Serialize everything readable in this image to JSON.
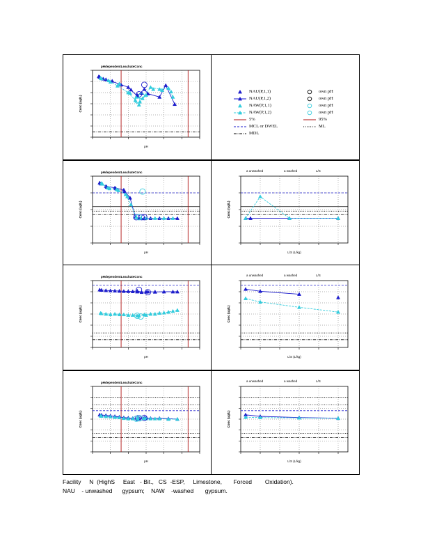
{
  "colors": {
    "nau": "#1c1ccc",
    "naw": "#33ccdd",
    "percentile": "#b01010",
    "mcl": "#1c1ccc",
    "ml": "#000000",
    "mdl": "#000000",
    "grid": "#666666"
  },
  "legend": {
    "items": [
      {
        "label": "NAU(P,1,1)",
        "kind": "nau-tri"
      },
      {
        "label": "own pH",
        "kind": "circle-black"
      },
      {
        "label": "NAU(P,1,2)",
        "kind": "nau-line"
      },
      {
        "label": "own pH",
        "kind": "circle-black"
      },
      {
        "label": "NAW(P,1,1)",
        "kind": "naw-tri"
      },
      {
        "label": "own pH",
        "kind": "circle-cyan"
      },
      {
        "label": "NAW(P,1,2)",
        "kind": "naw-line"
      },
      {
        "label": "own pH",
        "kind": "circle-cyan"
      },
      {
        "label": "5%",
        "kind": "red-line"
      },
      {
        "label": "95%",
        "kind": "red-line"
      },
      {
        "label": "MCL or DWEL",
        "kind": "blue-dash"
      },
      {
        "label": "ML",
        "kind": "black-dot"
      },
      {
        "label": "MDL",
        "kind": "black-dashdot"
      }
    ]
  },
  "caption": {
    "line1": "Facility     N  (HighS     East   - Bit.,   CS  -ESP,     Limestone,       Forced        Oxidation).",
    "line2": "NAU    - unwashed      gypsum;    NAW    -washed       gypsum."
  },
  "chart_data": [
    {
      "type": "scatter",
      "title": "pHdependentLeachateConc",
      "xlabel": "pH",
      "ylabel": "Conc (ug/L)",
      "xlim": [
        2,
        14
      ],
      "ylim_log": [
        0.01,
        10000
      ],
      "percentile_x": [
        5.2,
        12.7
      ],
      "ref_lines": [
        {
          "kind": "mdl",
          "y": 0.03
        },
        {
          "kind": "mdl",
          "y": 0.03
        }
      ],
      "series": [
        {
          "style": "nau-line",
          "x": [
            2.8,
            3.5,
            5.0,
            6.0,
            7.0,
            7.8,
            8.2,
            9.5,
            10.2,
            11.2
          ],
          "y": [
            2500,
            1500,
            600,
            300,
            50,
            200,
            80,
            40,
            450,
            9
          ]
        },
        {
          "style": "nau-tri",
          "x": [
            2.7,
            3.2,
            4.2,
            5.2,
            6.3,
            7.0,
            7.5
          ],
          "y": [
            2800,
            1700,
            1100,
            500,
            180,
            60,
            90
          ]
        },
        {
          "style": "naw-line",
          "x": [
            2.9,
            3.8,
            4.8,
            6.0,
            6.8,
            7.2,
            7.6,
            8.5,
            9.5,
            10.5,
            11.0
          ],
          "y": [
            2000,
            1200,
            400,
            100,
            20,
            8,
            30,
            300,
            200,
            250,
            40
          ]
        },
        {
          "style": "naw-tri",
          "x": [
            3.0,
            4.0,
            5.0,
            6.2,
            6.9,
            7.3,
            8.0,
            8.8,
            9.8,
            10.8
          ],
          "y": [
            1800,
            900,
            600,
            90,
            40,
            15,
            60,
            200,
            160,
            120
          ]
        },
        {
          "style": "circle-black",
          "x": [
            7.2,
            7.8
          ],
          "y": [
            70,
            500
          ]
        },
        {
          "style": "circle-cyan",
          "x": [
            7.0,
            7.5
          ],
          "y": [
            20,
            50
          ]
        }
      ]
    },
    {
      "type": "scatter",
      "title": "pHdependentLeachateConc",
      "xlabel": "pH",
      "ylabel": "Conc (ug/L)",
      "xlim": [
        2,
        14
      ],
      "ylim_log": [
        0.01,
        100
      ],
      "percentile_x": [
        5.2,
        12.7
      ],
      "ref_lines": [
        {
          "kind": "mcl",
          "y": 10
        },
        {
          "kind": "ml-solid",
          "y": 1.5
        },
        {
          "kind": "ml",
          "y": 0.8
        },
        {
          "kind": "mdl",
          "y": 0.5
        }
      ],
      "series": [
        {
          "style": "nau-line",
          "x": [
            2.8,
            3.5,
            4.5,
            5.5,
            6.2,
            6.8,
            7.2,
            7.8,
            8.5,
            9.5,
            10.5,
            11.5
          ],
          "y": [
            40,
            25,
            20,
            15,
            5,
            0.35,
            0.3,
            0.3,
            0.3,
            0.3,
            0.3,
            0.3
          ]
        },
        {
          "style": "nau-tri",
          "x": [
            2.9,
            3.6,
            4.6,
            5.6
          ],
          "y": [
            35,
            22,
            18,
            12
          ]
        },
        {
          "style": "naw-line",
          "x": [
            3.0,
            3.7,
            4.7,
            5.7,
            6.3,
            6.9,
            7.4,
            8.0,
            9.0,
            10.0,
            11.0
          ],
          "y": [
            38,
            20,
            16,
            8,
            2,
            0.35,
            0.3,
            0.3,
            0.3,
            0.3,
            0.3
          ]
        },
        {
          "style": "naw-tri",
          "x": [
            3.1,
            3.9,
            4.9,
            5.9
          ],
          "y": [
            34,
            18,
            14,
            6
          ]
        },
        {
          "style": "circle-black",
          "x": [
            6.9,
            7.5,
            7.8
          ],
          "y": [
            0.35,
            0.35,
            0.35
          ]
        },
        {
          "style": "circle-cyan",
          "x": [
            7.2,
            7.6
          ],
          "y": [
            0.35,
            12
          ]
        }
      ]
    },
    {
      "type": "scatter",
      "title": "pHdependentLeachateConc",
      "xlabel": "pH",
      "ylabel": "Conc (ug/L)",
      "xlim": [
        2,
        14
      ],
      "ylim_log": [
        0.01,
        10000
      ],
      "percentile_x": [
        5.2,
        12.7
      ],
      "ref_lines": [
        {
          "kind": "mcl",
          "y": 4000
        },
        {
          "kind": "ml",
          "y": 0.2
        },
        {
          "kind": "mdl",
          "y": 0.05
        }
      ],
      "series": [
        {
          "style": "nau-line",
          "x": [
            2.8,
            3.5,
            4.5,
            5.5,
            6.5,
            7.0,
            7.5,
            8.2,
            9.0,
            10.0,
            11.0,
            11.5
          ],
          "y": [
            1500,
            1300,
            1200,
            1100,
            1050,
            1200,
            900,
            1000,
            950,
            1000,
            1000,
            1000
          ]
        },
        {
          "style": "nau-tri",
          "x": [
            3.0,
            4.0,
            5.0,
            6.0,
            7.0,
            8.0,
            9.0
          ],
          "y": [
            1400,
            1250,
            1150,
            1080,
            1000,
            950,
            980
          ]
        },
        {
          "style": "naw-line",
          "x": [
            2.9,
            3.5,
            4.5,
            5.5,
            6.5,
            7.2,
            7.8,
            8.5,
            9.5,
            10.5,
            11.5
          ],
          "y": [
            12,
            10,
            10,
            9,
            8,
            7,
            9,
            10,
            12,
            15,
            22
          ]
        },
        {
          "style": "naw-tri",
          "x": [
            3.0,
            4.0,
            5.0,
            6.0,
            7.0,
            8.0,
            9.0,
            10.0,
            11.0
          ],
          "y": [
            11,
            9,
            9,
            8,
            7,
            8,
            10,
            13,
            18
          ]
        },
        {
          "style": "circle-black",
          "x": [
            7.2,
            8.2
          ],
          "y": [
            1500,
            900
          ]
        },
        {
          "style": "circle-cyan",
          "x": [
            7.0,
            7.4
          ],
          "y": [
            7,
            6
          ]
        }
      ]
    },
    {
      "type": "scatter",
      "title": "pHdependentLeachateConc",
      "xlabel": "pH",
      "ylabel": "Conc (ug/L)",
      "xlim": [
        2,
        14
      ],
      "ylim_log": [
        0.01,
        10000
      ],
      "percentile_x": [
        5.2,
        12.7
      ],
      "ref_lines": [
        {
          "kind": "ml",
          "y": 1000
        },
        {
          "kind": "ml",
          "y": 200
        },
        {
          "kind": "mcl",
          "y": 60
        },
        {
          "kind": "ml",
          "y": 0.5
        },
        {
          "kind": "mdl",
          "y": 0.2
        }
      ],
      "series": [
        {
          "style": "nau-line",
          "x": [
            2.8,
            3.5,
            4.5,
            5.5,
            6.5,
            7.2,
            7.8,
            8.5,
            9.5,
            10.5,
            11.5
          ],
          "y": [
            25,
            22,
            18,
            14,
            12,
            12,
            14,
            12,
            12,
            11,
            10
          ]
        },
        {
          "style": "nau-tri",
          "x": [
            3.0,
            4.0,
            5.0,
            6.0,
            7.0,
            8.0
          ],
          "y": [
            24,
            20,
            16,
            13,
            12,
            13
          ]
        },
        {
          "style": "naw-line",
          "x": [
            2.9,
            3.5,
            4.5,
            5.5,
            6.5,
            7.0,
            7.8,
            8.5,
            9.5,
            10.5,
            11.5
          ],
          "y": [
            20,
            18,
            15,
            12,
            11,
            12,
            12,
            11,
            11,
            10,
            10
          ]
        },
        {
          "style": "naw-tri",
          "x": [
            3.0,
            4.0,
            5.0,
            6.0,
            7.0,
            8.0,
            9.0
          ],
          "y": [
            19,
            17,
            14,
            11,
            10,
            11,
            11
          ]
        },
        {
          "style": "circle-black",
          "x": [
            7.1,
            7.8
          ],
          "y": [
            12,
            13
          ]
        },
        {
          "style": "circle-cyan",
          "x": [
            6.9,
            7.3
          ],
          "y": [
            11,
            12
          ]
        }
      ]
    },
    {
      "type": "scatter",
      "title": "",
      "legend_text": [
        "a  unwashed",
        "a  washed",
        "L/S"
      ],
      "xlabel": "L/S    (L/kg)",
      "ylabel": "Conc (ug/L)",
      "xlim": [
        0,
        11
      ],
      "ylim_log": [
        0.01,
        100
      ],
      "ref_lines": [
        {
          "kind": "mcl",
          "y": 10
        },
        {
          "kind": "ml-solid",
          "y": 1.5
        },
        {
          "kind": "ml",
          "y": 0.8
        },
        {
          "kind": "mdl",
          "y": 0.5
        }
      ],
      "series": [
        {
          "style": "nau-line",
          "x": [
            0.5,
            1.0,
            5.0,
            10.0
          ],
          "y": [
            0.3,
            0.3,
            0.3,
            0.3
          ]
        },
        {
          "style": "naw-line",
          "x": [
            0.5,
            2.0,
            5.0,
            10.0
          ],
          "y": [
            0.3,
            6,
            0.3,
            0.3
          ]
        }
      ]
    },
    {
      "type": "scatter",
      "title": "",
      "legend_text": [
        "a  unwashed",
        "a  washed",
        "L/S"
      ],
      "xlabel": "L/S    (L/kg)",
      "ylabel": "Conc (ug/L)",
      "xlim": [
        0,
        11
      ],
      "ylim_log": [
        0.01,
        10000
      ],
      "ref_lines": [
        {
          "kind": "mcl",
          "y": 4000
        },
        {
          "kind": "ml",
          "y": 0.2
        },
        {
          "kind": "mdl",
          "y": 0.05
        }
      ],
      "series": [
        {
          "style": "nau-line",
          "x": [
            0.5,
            2.0,
            6.0
          ],
          "y": [
            1700,
            1100,
            600
          ]
        },
        {
          "style": "nau-tri-only",
          "x": [
            10.0
          ],
          "y": [
            300
          ]
        },
        {
          "style": "naw-line",
          "x": [
            0.5,
            2.0,
            6.0,
            10.0
          ],
          "y": [
            250,
            120,
            40,
            15
          ]
        }
      ]
    },
    {
      "type": "scatter",
      "title": "",
      "legend_text": [
        "a  unwashed",
        "a  washed",
        "L/S"
      ],
      "xlabel": "L/S    (L/kg)",
      "ylabel": "Conc (ug/L)",
      "xlim": [
        0,
        11
      ],
      "ylim_log": [
        0.01,
        10000
      ],
      "ref_lines": [
        {
          "kind": "ml",
          "y": 1000
        },
        {
          "kind": "ml",
          "y": 200
        },
        {
          "kind": "mcl",
          "y": 60
        },
        {
          "kind": "ml",
          "y": 0.5
        },
        {
          "kind": "mdl",
          "y": 0.2
        }
      ],
      "series": [
        {
          "style": "nau-line",
          "x": [
            0.5,
            2.0,
            6.0,
            10.0
          ],
          "y": [
            25,
            18,
            14,
            12
          ]
        },
        {
          "style": "naw-line",
          "x": [
            0.5,
            2.0,
            6.0,
            10.0
          ],
          "y": [
            15,
            14,
            13,
            12
          ]
        }
      ]
    }
  ]
}
